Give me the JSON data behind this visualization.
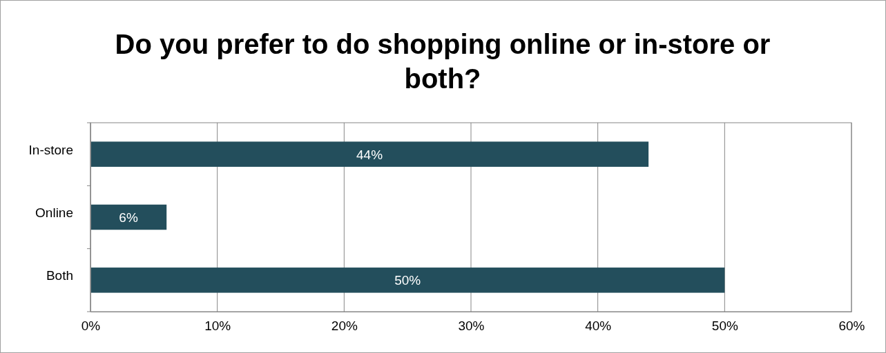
{
  "chart_data": {
    "type": "bar",
    "orientation": "horizontal",
    "title": "Do you prefer to do shopping online or in-store or both?",
    "categories": [
      "In-store",
      "Online",
      "Both"
    ],
    "values": [
      44,
      6,
      50
    ],
    "color": "#234e5c",
    "value_labels": [
      "44%",
      "6%",
      "50%"
    ],
    "xlim": [
      0,
      60
    ],
    "xticks": [
      {
        "value": 0,
        "label": "0%"
      },
      {
        "value": 10,
        "label": "10%"
      },
      {
        "value": 20,
        "label": "20%"
      },
      {
        "value": 30,
        "label": "30%"
      },
      {
        "value": 40,
        "label": "40%"
      },
      {
        "value": 50,
        "label": "50%"
      },
      {
        "value": 60,
        "label": "60%"
      }
    ],
    "grid": "x"
  }
}
